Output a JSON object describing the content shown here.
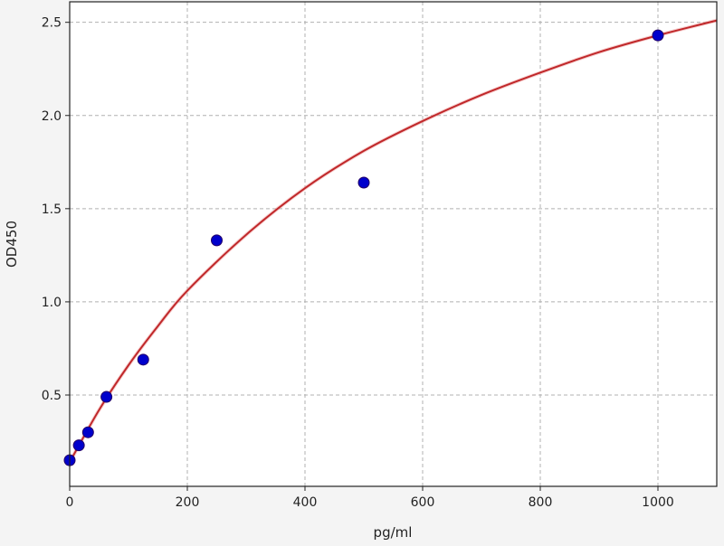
{
  "chart_data": {
    "type": "scatter",
    "title": "",
    "xlabel": "pg/ml",
    "ylabel": "OD450",
    "xlim": [
      0,
      1100
    ],
    "ylim": [
      0.01,
      2.61
    ],
    "xticks": [
      0,
      200,
      400,
      600,
      800,
      1000
    ],
    "xtick_labels": [
      "0",
      "200",
      "400",
      "600",
      "800",
      "1000"
    ],
    "yticks": [
      0.5,
      1.0,
      1.5,
      2.0,
      2.5
    ],
    "ytick_labels": [
      "0.5",
      "1.0",
      "1.5",
      "2.0",
      "2.5"
    ],
    "grid": true,
    "points": {
      "x": [
        0,
        15.6,
        31.25,
        62.5,
        125,
        250,
        500,
        1000
      ],
      "y": [
        0.15,
        0.23,
        0.3,
        0.49,
        0.69,
        1.33,
        1.64,
        2.43
      ],
      "color": "#0000cc"
    },
    "fit_curve": {
      "x": [
        0,
        50,
        100,
        150,
        200,
        300,
        400,
        500,
        600,
        700,
        800,
        900,
        1000,
        1100
      ],
      "y": [
        0.14,
        0.42,
        0.66,
        0.87,
        1.06,
        1.36,
        1.61,
        1.81,
        1.97,
        2.11,
        2.23,
        2.34,
        2.43,
        2.51
      ],
      "color": "#c0282a"
    }
  }
}
